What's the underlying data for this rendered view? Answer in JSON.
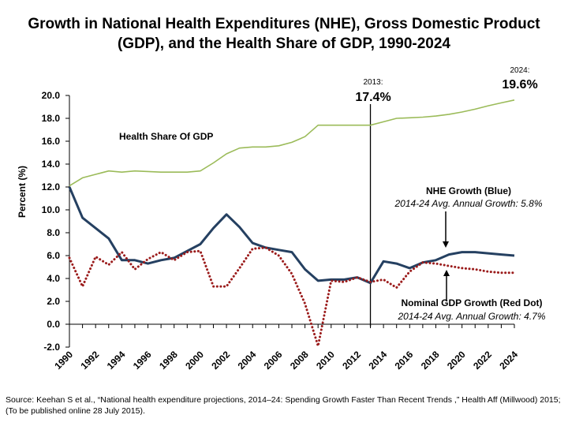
{
  "chart_data": {
    "type": "line",
    "title_line1": "Growth in National Health Expenditures (NHE), Gross Domestic Product",
    "title_line2": "(GDP), and the Health Share of GDP, 1990-2024",
    "ylabel": "Percent (%)",
    "xlabel": "",
    "ylim": [
      -2,
      20
    ],
    "yticks": [
      "20.0",
      "18.0",
      "16.0",
      "14.0",
      "12.0",
      "10.0",
      "8.0",
      "6.0",
      "4.0",
      "2.0",
      "0.0",
      "-2.0"
    ],
    "x": [
      1990,
      1991,
      1992,
      1993,
      1994,
      1995,
      1996,
      1997,
      1998,
      1999,
      2000,
      2001,
      2002,
      2003,
      2004,
      2005,
      2006,
      2007,
      2008,
      2009,
      2010,
      2011,
      2012,
      2013,
      2014,
      2015,
      2016,
      2017,
      2018,
      2019,
      2020,
      2021,
      2022,
      2023,
      2024
    ],
    "xtick_labels": [
      "1990",
      "1992",
      "1994",
      "1996",
      "1998",
      "2000",
      "2002",
      "2004",
      "2006",
      "2008",
      "2010",
      "2012",
      "2014",
      "2016",
      "2018",
      "2020",
      "2022",
      "2024"
    ],
    "grid": false,
    "series": [
      {
        "name": "Health Share Of GDP",
        "color": "#9bbb59",
        "style": "solid",
        "values": [
          12.1,
          12.8,
          13.1,
          13.4,
          13.3,
          13.4,
          13.35,
          13.3,
          13.3,
          13.3,
          13.4,
          14.1,
          14.9,
          15.4,
          15.5,
          15.5,
          15.6,
          15.9,
          16.4,
          17.4,
          17.4,
          17.4,
          17.4,
          17.4,
          17.7,
          18.0,
          18.05,
          18.1,
          18.2,
          18.35,
          18.55,
          18.8,
          19.1,
          19.35,
          19.6
        ]
      },
      {
        "name": "NHE Growth (Blue)",
        "color": "#254061",
        "style": "solid",
        "values": [
          12.0,
          9.3,
          8.4,
          7.5,
          5.6,
          5.6,
          5.3,
          5.6,
          5.8,
          6.4,
          7.0,
          8.4,
          9.6,
          8.5,
          7.1,
          6.7,
          6.5,
          6.3,
          4.8,
          3.8,
          3.9,
          3.9,
          4.1,
          3.6,
          5.5,
          5.3,
          4.9,
          5.4,
          5.6,
          6.1,
          6.3,
          6.3,
          6.2,
          6.1,
          6.0
        ]
      },
      {
        "name": "Nominal GDP Growth (Red Dot)",
        "color": "#9b1c1c",
        "style": "dotted",
        "values": [
          5.8,
          3.3,
          5.9,
          5.2,
          6.3,
          4.8,
          5.7,
          6.3,
          5.6,
          6.3,
          6.4,
          3.3,
          3.3,
          4.9,
          6.6,
          6.7,
          6.0,
          4.4,
          1.8,
          -1.9,
          3.8,
          3.7,
          4.1,
          3.7,
          3.9,
          3.2,
          4.6,
          5.4,
          5.3,
          5.1,
          4.9,
          4.8,
          4.6,
          4.5,
          4.5
        ]
      }
    ],
    "annotations": {
      "health_share_label": "Health Share Of GDP",
      "nhe_label": "NHE Growth (Blue)",
      "nhe_avg": "2014-24 Avg. Annual Growth: 5.8%",
      "gdp_label": "Nominal GDP Growth (Red Dot)",
      "gdp_avg": "2014-24 Avg. Annual Growth: 4.7%",
      "y2013_label": "2013:",
      "y2013_value": "17.4%",
      "y2024_label": "2024:",
      "y2024_value": "19.6%"
    },
    "marker_year": 2013
  },
  "source_text": "Source: Keehan S et al., “National health expenditure projections, 2014–24: Spending Growth Faster Than Recent Trends ,” Health Aff (Millwood) 2015; (To be published online 28 July 2015)."
}
